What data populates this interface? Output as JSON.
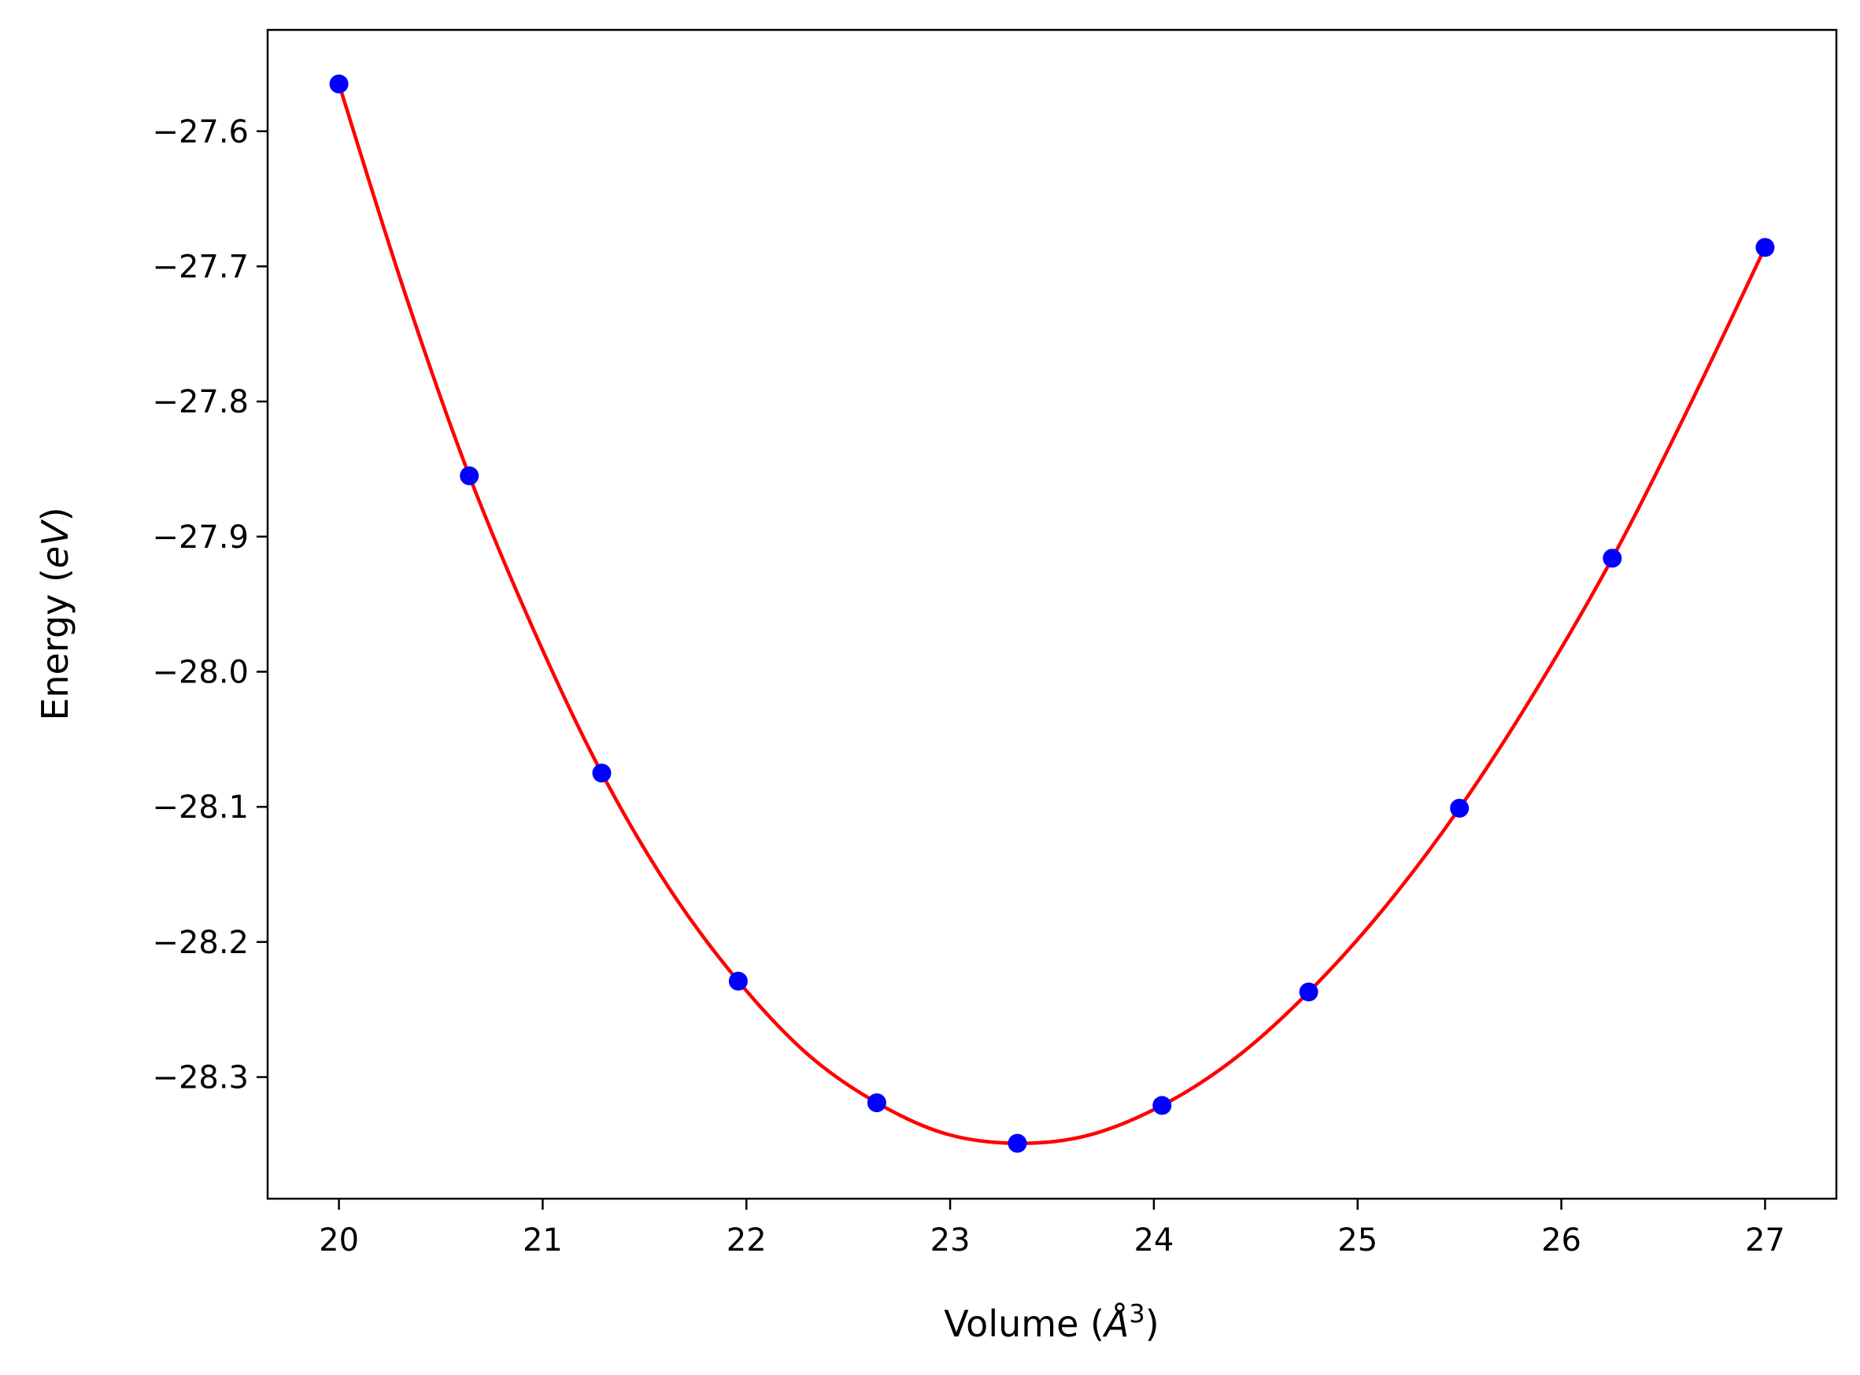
{
  "chart_data": {
    "type": "line",
    "title": "",
    "xlabel": "Volume (Å³)",
    "xlabel_parts": {
      "prefix": "Volume (",
      "symbol": "Å",
      "superscript": "3",
      "suffix": ")"
    },
    "ylabel": "Energy (eV)",
    "ylabel_parts": {
      "prefix": "Energy (",
      "unit": "eV",
      "suffix": ")"
    },
    "xlim": [
      19.65,
      27.35
    ],
    "ylim": [
      -28.39,
      -27.525
    ],
    "xticks": [
      20,
      21,
      22,
      23,
      24,
      25,
      26,
      27
    ],
    "xtick_labels": [
      "20",
      "21",
      "22",
      "23",
      "24",
      "25",
      "26",
      "27"
    ],
    "yticks": [
      -27.6,
      -27.7,
      -27.8,
      -27.9,
      -28.0,
      -28.1,
      -28.2,
      -28.3
    ],
    "ytick_labels": [
      "−27.6",
      "−27.7",
      "−27.8",
      "−27.9",
      "−28.0",
      "−28.1",
      "−28.2",
      "−28.3"
    ],
    "grid": false,
    "series": [
      {
        "kind": "scatter",
        "color": "#0000ff",
        "x": [
          20.0,
          20.64,
          21.29,
          21.96,
          22.64,
          23.33,
          24.04,
          24.76,
          25.5,
          26.25,
          27.0
        ],
        "y": [
          -27.565,
          -27.855,
          -28.075,
          -28.229,
          -28.319,
          -28.349,
          -28.321,
          -28.237,
          -28.101,
          -27.916,
          -27.686
        ]
      },
      {
        "kind": "line",
        "color": "#ff0000",
        "x": [
          20.0,
          20.32,
          20.64,
          20.97,
          21.29,
          21.62,
          21.96,
          22.3,
          22.64,
          22.98,
          23.33,
          23.68,
          24.04,
          24.4,
          24.76,
          25.13,
          25.5,
          25.87,
          26.25,
          26.62,
          27.0
        ],
        "y": [
          -27.565,
          -27.718,
          -27.855,
          -27.974,
          -28.075,
          -28.16,
          -28.229,
          -28.283,
          -28.319,
          -28.342,
          -28.349,
          -28.343,
          -28.321,
          -28.286,
          -28.237,
          -28.175,
          -28.101,
          -28.015,
          -27.916,
          -27.806,
          -27.686
        ]
      }
    ]
  }
}
